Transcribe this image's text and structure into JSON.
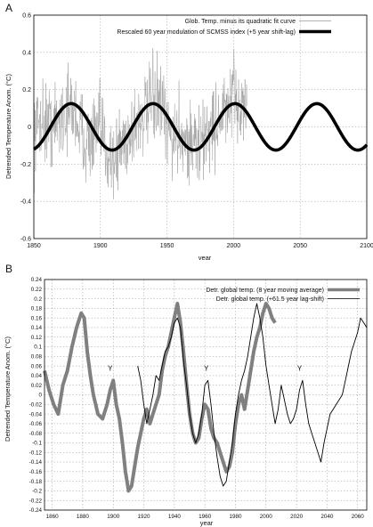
{
  "chart_data": [
    {
      "panel": "A",
      "type": "line",
      "xlabel": "year",
      "ylabel": "Detrended Temperature Anom. (°C)",
      "xlim": [
        1850,
        2100
      ],
      "ylim": [
        -0.6,
        0.6
      ],
      "xticks": [
        "1850",
        "1900",
        "1950",
        "2000",
        "2050",
        "2100"
      ],
      "yticks": [
        "-0.6",
        "-0.4",
        "-0.2",
        "0",
        "0.2",
        "0.4",
        "0.6"
      ],
      "grid": true,
      "legend_position": "top-right",
      "series": [
        {
          "name": "Glob. Temp. minus its quadratic fit curve",
          "color": "#9a9a9a",
          "style": "thin-noisy",
          "x_range": [
            1850,
            2010
          ],
          "envelope_points": [
            [
              1850,
              -0.05
            ],
            [
              1855,
              0.05
            ],
            [
              1860,
              0.02
            ],
            [
              1865,
              0.0
            ],
            [
              1870,
              0.05
            ],
            [
              1875,
              0.08
            ],
            [
              1880,
              0.1
            ],
            [
              1885,
              -0.02
            ],
            [
              1890,
              -0.08
            ],
            [
              1895,
              -0.06
            ],
            [
              1900,
              -0.02
            ],
            [
              1905,
              -0.12
            ],
            [
              1910,
              -0.18
            ],
            [
              1915,
              -0.1
            ],
            [
              1920,
              -0.06
            ],
            [
              1925,
              0.0
            ],
            [
              1930,
              0.05
            ],
            [
              1935,
              0.08
            ],
            [
              1940,
              0.15
            ],
            [
              1945,
              0.12
            ],
            [
              1950,
              -0.02
            ],
            [
              1955,
              -0.06
            ],
            [
              1960,
              -0.02
            ],
            [
              1965,
              -0.08
            ],
            [
              1970,
              -0.08
            ],
            [
              1975,
              -0.12
            ],
            [
              1980,
              -0.02
            ],
            [
              1985,
              0.0
            ],
            [
              1990,
              0.06
            ],
            [
              1995,
              0.08
            ],
            [
              2000,
              0.15
            ],
            [
              2005,
              0.12
            ],
            [
              2010,
              0.1
            ]
          ],
          "noise_amplitude": 0.22
        },
        {
          "name": "Rescaled 60 year modulation of SCMSS index (+5 year shift-lag)",
          "color": "#000000",
          "style": "thick",
          "function": "sine",
          "amplitude": 0.125,
          "period_years": 61.5,
          "peak_year": 1878
        }
      ]
    },
    {
      "panel": "B",
      "type": "line",
      "xlabel": "year",
      "ylabel": "Detrended Temperature Anom. (°C)",
      "xlim": [
        1855,
        2066
      ],
      "ylim": [
        -0.24,
        0.24
      ],
      "xticks": [
        "1860",
        "1880",
        "1900",
        "1920",
        "1940",
        "1960",
        "1980",
        "2000",
        "2020",
        "2040",
        "2060"
      ],
      "yticks": [
        "-0.24",
        "-0.22",
        "-0.2",
        "-0.18",
        "-0.16",
        "-0.14",
        "-0.12",
        "-0.1",
        "-0.08",
        "-0.06",
        "-0.04",
        "-0.02",
        "0",
        "0.02",
        "0.04",
        "0.06",
        "0.08",
        "0.1",
        "0.12",
        "0.14",
        "0.16",
        "0.18",
        "0.2",
        "0.22",
        "0.24"
      ],
      "grid": true,
      "legend_position": "top-right",
      "annotations": [
        {
          "text": "Y",
          "x": 1898,
          "y": 0.05
        },
        {
          "text": "Y",
          "x": 1961,
          "y": 0.05
        },
        {
          "text": "Y",
          "x": 2022,
          "y": 0.05
        }
      ],
      "series": [
        {
          "name": "Detr. global temp. (8 year moving average)",
          "color": "#808080",
          "style": "thick",
          "x": [
            1855,
            1858,
            1861,
            1864,
            1867,
            1870,
            1873,
            1876,
            1879,
            1881,
            1883,
            1885,
            1887,
            1890,
            1893,
            1896,
            1898,
            1900,
            1902,
            1904,
            1906,
            1908,
            1910,
            1912,
            1914,
            1916,
            1918,
            1920,
            1922,
            1924,
            1926,
            1928,
            1930,
            1932,
            1934,
            1936,
            1938,
            1940,
            1942,
            1944,
            1946,
            1948,
            1950,
            1952,
            1954,
            1956,
            1958,
            1960,
            1962,
            1964,
            1966,
            1968,
            1970,
            1972,
            1974,
            1976,
            1978,
            1980,
            1982,
            1984,
            1986,
            1988,
            1990,
            1992,
            1994,
            1996,
            1998,
            2000,
            2002,
            2004,
            2006
          ],
          "values": [
            0.05,
            0.01,
            -0.02,
            -0.04,
            0.02,
            0.05,
            0.1,
            0.14,
            0.17,
            0.16,
            0.09,
            0.04,
            0.0,
            -0.04,
            -0.05,
            -0.02,
            0.01,
            0.03,
            -0.02,
            -0.05,
            -0.1,
            -0.16,
            -0.2,
            -0.19,
            -0.15,
            -0.11,
            -0.08,
            -0.05,
            -0.03,
            -0.06,
            -0.04,
            -0.02,
            0.0,
            0.05,
            0.08,
            0.1,
            0.13,
            0.16,
            0.19,
            0.15,
            0.09,
            0.02,
            -0.04,
            -0.08,
            -0.1,
            -0.09,
            -0.05,
            -0.02,
            -0.03,
            -0.07,
            -0.09,
            -0.1,
            -0.12,
            -0.14,
            -0.16,
            -0.15,
            -0.12,
            -0.06,
            -0.02,
            0.0,
            -0.03,
            0.01,
            0.05,
            0.09,
            0.12,
            0.14,
            0.17,
            0.19,
            0.18,
            0.16,
            0.15
          ]
        },
        {
          "name": "Detr. global temp. (+61.5 year lag-shift)",
          "color": "#000000",
          "style": "thin",
          "x": [
            1916,
            1918,
            1920,
            1922,
            1924,
            1926,
            1928,
            1930,
            1932,
            1934,
            1936,
            1938,
            1940,
            1942,
            1944,
            1946,
            1948,
            1950,
            1952,
            1954,
            1956,
            1958,
            1960,
            1962,
            1964,
            1966,
            1968,
            1970,
            1972,
            1974,
            1976,
            1978,
            1980,
            1982,
            1984,
            1986,
            1988,
            1990,
            1992,
            1994,
            1996,
            1998,
            2000,
            2002,
            2004,
            2006,
            2008,
            2010,
            2012,
            2014,
            2016,
            2018,
            2020,
            2022,
            2024,
            2026,
            2028,
            2030,
            2032,
            2034,
            2036,
            2038,
            2040,
            2042,
            2044,
            2046,
            2048,
            2050,
            2052,
            2054,
            2056,
            2058,
            2060,
            2062,
            2064,
            2066
          ],
          "values": [
            0.06,
            0.03,
            -0.02,
            -0.06,
            -0.03,
            0.0,
            0.04,
            0.03,
            0.06,
            0.09,
            0.1,
            0.12,
            0.15,
            0.16,
            0.14,
            0.07,
            0.02,
            -0.04,
            -0.08,
            -0.1,
            -0.08,
            -0.04,
            0.02,
            0.03,
            -0.02,
            -0.08,
            -0.13,
            -0.17,
            -0.19,
            -0.18,
            -0.14,
            -0.1,
            -0.04,
            0.0,
            0.03,
            0.05,
            0.08,
            0.12,
            0.16,
            0.19,
            0.16,
            0.12,
            0.06,
            0.02,
            -0.02,
            -0.06,
            -0.03,
            0.02,
            -0.01,
            -0.04,
            -0.06,
            -0.05,
            -0.03,
            0.01,
            0.03,
            -0.02,
            -0.06,
            -0.08,
            -0.1,
            -0.12,
            -0.14,
            -0.1,
            -0.07,
            -0.04,
            -0.03,
            -0.02,
            -0.01,
            0.0,
            0.03,
            0.06,
            0.09,
            0.11,
            0.13,
            0.16,
            0.15,
            0.14
          ]
        }
      ]
    }
  ]
}
